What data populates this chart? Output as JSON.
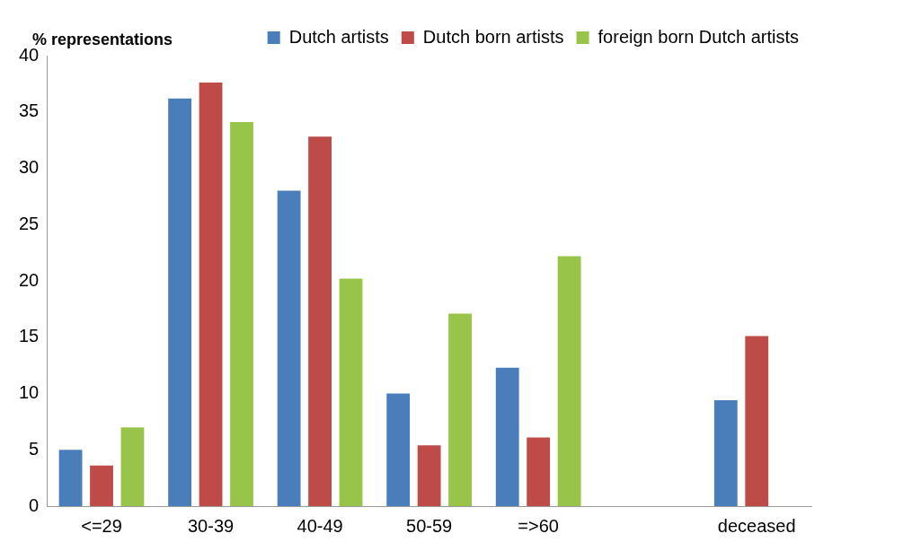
{
  "chart_data": {
    "type": "bar",
    "ylabel": "% representations",
    "categories": [
      "<=29",
      "30-39",
      "40-49",
      "50-59",
      "=>60",
      null,
      "deceased"
    ],
    "series": [
      {
        "name": "Dutch artists",
        "color": "#4a7ebb",
        "values": [
          5,
          36.2,
          28,
          10,
          12.3,
          null,
          9.4
        ]
      },
      {
        "name": "Dutch born artists",
        "color": "#be4b48",
        "values": [
          3.6,
          37.6,
          32.8,
          5.4,
          6.1,
          null,
          15.1
        ]
      },
      {
        "name": "foreign born Dutch artists",
        "color": "#98c44a",
        "values": [
          7,
          34.1,
          20.2,
          17.1,
          22.2,
          null,
          null
        ]
      }
    ],
    "ylim": [
      0,
      40
    ],
    "yticks": [
      0,
      5,
      10,
      15,
      20,
      25,
      30,
      35,
      40
    ],
    "grid": false,
    "legend": "top"
  }
}
